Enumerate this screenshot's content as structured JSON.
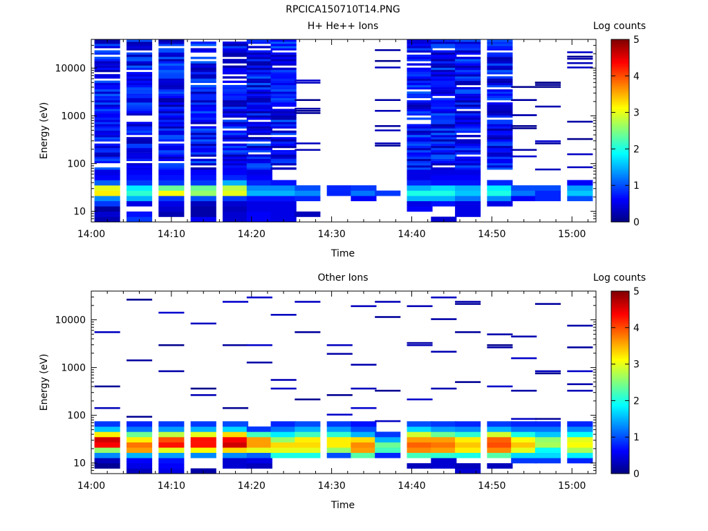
{
  "figure_title": "RPCICA150710T14.PNG",
  "chart_data": [
    {
      "type": "heatmap",
      "title": "H+ He++ Ions",
      "xlabel": "Time",
      "ylabel": "Energy (eV)",
      "y_scale": "log",
      "ylim": [
        6,
        40000
      ],
      "xlim": [
        "14:00",
        "15:03"
      ],
      "x_ticks": [
        "14:00",
        "14:10",
        "14:20",
        "14:30",
        "14:40",
        "14:50",
        "15:00"
      ],
      "y_ticks": [
        "10",
        "100",
        "1000",
        "10000"
      ],
      "colorbar": {
        "label": "Log counts",
        "min": 0,
        "max": 5,
        "ticks": [
          "0",
          "1",
          "2",
          "3",
          "4",
          "5"
        ],
        "colormap": "jet"
      },
      "time_bins": [
        "14:02",
        "14:06",
        "14:10",
        "14:14",
        "14:18",
        "14:21",
        "14:24",
        "14:27",
        "14:31",
        "14:34",
        "14:37",
        "14:41",
        "14:44",
        "14:47",
        "14:51",
        "14:54",
        "14:57",
        "15:01"
      ],
      "columns": [
        {
          "t": "14:02",
          "low": [
            0.25,
            0.4,
            0.15,
            0.9,
            1.3,
            3.2,
            3.0,
            1.1,
            0.6,
            0.5
          ],
          "high": "dense"
        },
        {
          "t": "14:06",
          "low": [
            0.9,
            0.7,
            0.0,
            0.5,
            1.5,
            2.1,
            1.8,
            0.9,
            0.7,
            0.6
          ],
          "high": "dense"
        },
        {
          "t": "14:10",
          "low": [
            0.0,
            0.25,
            0.4,
            0.5,
            0.9,
            3.1,
            2.4,
            0.9,
            0.7,
            0.6
          ],
          "high": "dense"
        },
        {
          "t": "14:14",
          "low": [
            0.6,
            0.2,
            0.2,
            0.3,
            1.0,
            2.6,
            2.4,
            0.9,
            0.7,
            0.6
          ],
          "high": "dense"
        },
        {
          "t": "14:18",
          "low": [
            0.4,
            0.4,
            0.3,
            0.4,
            0.9,
            3.0,
            2.8,
            1.5,
            0.8,
            0.6
          ],
          "high": "dense"
        },
        {
          "t": "14:21",
          "low": [
            0.6,
            0.6,
            0.5,
            0.5,
            0.7,
            1.5,
            1.3,
            0.8,
            0.6,
            0.5
          ],
          "high": "dense"
        },
        {
          "t": "14:24",
          "low": [
            0.5,
            0.5,
            0.5,
            0.5,
            0.7,
            1.5,
            1.3,
            0.7,
            0.0,
            0.0
          ],
          "high": "dense"
        },
        {
          "t": "14:27",
          "low": [
            0.0,
            0.3,
            0.0,
            0.0,
            0.8,
            1.3,
            1.0,
            0.0,
            0.0,
            0.0
          ],
          "high": "sparse"
        },
        {
          "t": "14:31",
          "low": [
            0.0,
            0.0,
            0.0,
            0.0,
            0.0,
            0.8,
            0.8,
            0.0,
            0.0,
            0.0
          ],
          "high": "none"
        },
        {
          "t": "14:34",
          "low": [
            0.0,
            0.0,
            0.0,
            0.0,
            0.6,
            1.2,
            0.9,
            0.0,
            0.0,
            0.0
          ],
          "high": "none"
        },
        {
          "t": "14:37",
          "low": [
            0.0,
            0.0,
            0.0,
            0.0,
            0.0,
            0.9,
            0.0,
            0.0,
            0.0,
            0.0
          ],
          "high": "sparse"
        },
        {
          "t": "14:41",
          "low": [
            0.0,
            0.0,
            0.6,
            0.5,
            1.5,
            2.0,
            1.5,
            0.8,
            0.5,
            0.5
          ],
          "high": "dense"
        },
        {
          "t": "14:44",
          "low": [
            0.4,
            0.0,
            0.0,
            0.7,
            1.5,
            2.0,
            1.7,
            0.7,
            0.6,
            0.5
          ],
          "high": "dense"
        },
        {
          "t": "14:47",
          "low": [
            0.0,
            0.5,
            0.5,
            0.5,
            1.2,
            1.6,
            1.5,
            0.7,
            0.6,
            0.5
          ],
          "high": "dense"
        },
        {
          "t": "14:51",
          "low": [
            0.0,
            0.0,
            0.0,
            0.5,
            1.3,
            2.0,
            1.8,
            0.8,
            0.0,
            0.0
          ],
          "high": "dense"
        },
        {
          "t": "14:54",
          "low": [
            0.0,
            0.0,
            0.0,
            0.0,
            0.6,
            1.2,
            1.0,
            0.0,
            0.0,
            0.0
          ],
          "high": "sparse"
        },
        {
          "t": "14:57",
          "low": [
            0.0,
            0.0,
            0.0,
            0.0,
            0.8,
            0.8,
            1.0,
            0.0,
            0.0,
            0.0
          ],
          "high": "sparse"
        },
        {
          "t": "15:01",
          "low": [
            0.0,
            0.0,
            0.0,
            0.0,
            1.0,
            1.6,
            1.4,
            0.6,
            0.0,
            0.0
          ],
          "high": "sparse"
        }
      ]
    },
    {
      "type": "heatmap",
      "title": "Other Ions",
      "xlabel": "Time",
      "ylabel": "Energy (eV)",
      "y_scale": "log",
      "ylim": [
        6,
        40000
      ],
      "xlim": [
        "14:00",
        "15:03"
      ],
      "x_ticks": [
        "14:00",
        "14:10",
        "14:20",
        "14:30",
        "14:40",
        "14:50",
        "15:00"
      ],
      "y_ticks": [
        "10",
        "100",
        "1000",
        "10000"
      ],
      "colorbar": {
        "label": "Log counts",
        "min": 0,
        "max": 5,
        "ticks": [
          "0",
          "1",
          "2",
          "3",
          "4",
          "5"
        ],
        "colormap": "jet"
      },
      "time_bins": [
        "14:02",
        "14:06",
        "14:10",
        "14:14",
        "14:18",
        "14:21",
        "14:24",
        "14:27",
        "14:31",
        "14:34",
        "14:37",
        "14:41",
        "14:44",
        "14:47",
        "14:51",
        "14:54",
        "14:57",
        "15:01"
      ],
      "columns": [
        {
          "t": "14:02",
          "low": [
            0.0,
            0.1,
            0.3,
            1.3,
            2.6,
            4.4,
            4.6,
            3.2,
            1.6,
            0.9
          ],
          "high": "sparse"
        },
        {
          "t": "14:06",
          "low": [
            0.3,
            0.5,
            0.6,
            1.5,
            3.6,
            3.8,
            3.2,
            2.4,
            1.2,
            0.8
          ],
          "high": "sparse"
        },
        {
          "t": "14:10",
          "low": [
            0.5,
            0.6,
            0.7,
            1.4,
            3.0,
            4.3,
            4.0,
            2.8,
            1.4,
            0.9
          ],
          "high": "sparse"
        },
        {
          "t": "14:14",
          "low": [
            0.2,
            0.0,
            0.0,
            1.3,
            3.1,
            4.3,
            4.3,
            3.0,
            1.5,
            0.9
          ],
          "high": "sparse"
        },
        {
          "t": "14:18",
          "low": [
            0.0,
            0.4,
            0.4,
            1.3,
            3.3,
            4.6,
            4.4,
            3.3,
            1.7,
            1.0
          ],
          "high": "sparse"
        },
        {
          "t": "14:21",
          "low": [
            0.0,
            0.3,
            0.5,
            1.1,
            3.0,
            3.6,
            3.6,
            2.2,
            0.9,
            0.0
          ],
          "high": "sparse"
        },
        {
          "t": "14:24",
          "low": [
            0.0,
            0.0,
            0.0,
            2.0,
            3.0,
            3.3,
            2.6,
            1.8,
            1.2,
            0.8
          ],
          "high": "sparse"
        },
        {
          "t": "14:27",
          "low": [
            0.0,
            0.0,
            0.0,
            2.0,
            3.0,
            3.3,
            3.2,
            2.2,
            1.5,
            1.0
          ],
          "high": "sparse"
        },
        {
          "t": "14:31",
          "low": [
            0.0,
            0.0,
            0.0,
            1.0,
            2.6,
            3.2,
            3.2,
            2.1,
            1.4,
            0.9
          ],
          "high": "sparse"
        },
        {
          "t": "14:34",
          "low": [
            0.0,
            0.0,
            0.0,
            2.3,
            3.6,
            3.7,
            3.3,
            1.5,
            1.0,
            0.7
          ],
          "high": "sparse"
        },
        {
          "t": "14:37",
          "low": [
            0.0,
            0.0,
            0.0,
            0.8,
            2.2,
            2.4,
            1.5,
            0.9,
            0.0,
            0.0
          ],
          "high": "sparse"
        },
        {
          "t": "14:41",
          "low": [
            0.0,
            0.3,
            0.0,
            2.2,
            3.7,
            3.9,
            3.6,
            2.9,
            1.7,
            1.0
          ],
          "high": "sparse"
        },
        {
          "t": "14:44",
          "low": [
            0.0,
            0.4,
            0.4,
            2.1,
            3.6,
            3.8,
            3.6,
            2.4,
            1.4,
            0.9
          ],
          "high": "sparse"
        },
        {
          "t": "14:47",
          "low": [
            0.4,
            0.3,
            0.0,
            2.0,
            3.2,
            3.4,
            3.2,
            2.1,
            1.3,
            0.8
          ],
          "high": "sparse"
        },
        {
          "t": "14:51",
          "low": [
            0.0,
            0.3,
            0.0,
            2.3,
            3.7,
            4.0,
            3.9,
            2.9,
            1.5,
            0.9
          ],
          "high": "sparse"
        },
        {
          "t": "14:54",
          "low": [
            0.0,
            0.0,
            0.9,
            1.7,
            3.0,
            3.4,
            3.1,
            2.0,
            1.2,
            0.8
          ],
          "high": "sparse"
        },
        {
          "t": "14:57",
          "low": [
            0.0,
            0.0,
            0.9,
            1.7,
            1.9,
            2.7,
            2.6,
            1.6,
            1.2,
            0.8
          ],
          "high": "sparse"
        },
        {
          "t": "15:01",
          "low": [
            0.0,
            0.0,
            0.8,
            1.8,
            2.7,
            3.1,
            3.0,
            1.9,
            1.3,
            0.8
          ],
          "high": "sparse"
        }
      ]
    }
  ]
}
